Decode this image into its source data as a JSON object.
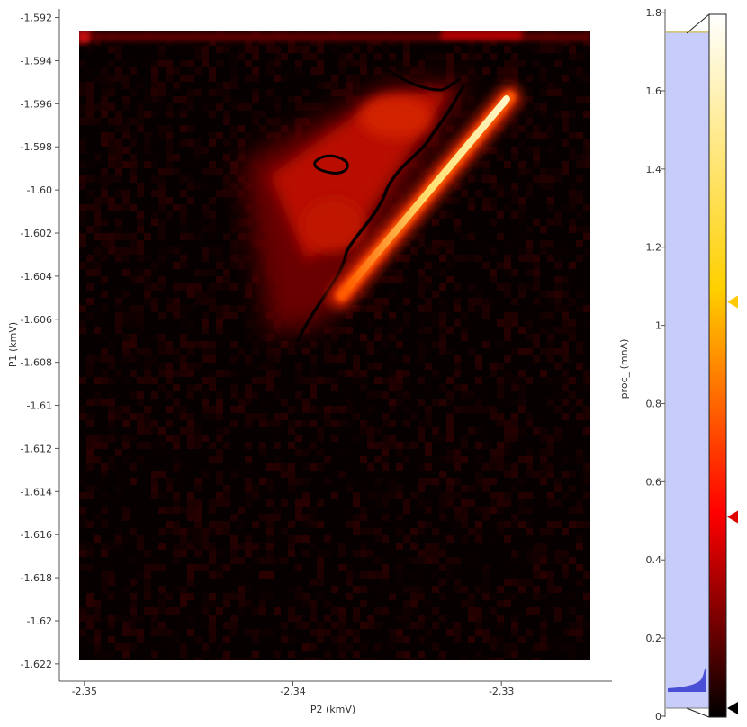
{
  "chart_data": [
    {
      "type": "heatmap",
      "title": "",
      "xlabel": "P2 (kmV)",
      "ylabel": "P1 (kmV)",
      "xlim": [
        -2.3512,
        -2.3247
      ],
      "ylim": [
        -1.6228,
        -1.5916
      ],
      "x_ticks": [
        "-2.35",
        "-2.34",
        "-2.33"
      ],
      "x_tick_values": [
        -2.35,
        -2.34,
        -2.33
      ],
      "y_ticks": [
        "-1.592",
        "-1.594",
        "-1.596",
        "-1.598",
        "-1.60",
        "-1.602",
        "-1.604",
        "-1.606",
        "-1.608",
        "-1.61",
        "-1.612",
        "-1.614",
        "-1.616",
        "-1.618",
        "-1.62",
        "-1.622"
      ],
      "y_tick_values": [
        -1.592,
        -1.594,
        -1.596,
        -1.598,
        -1.6,
        -1.602,
        -1.604,
        -1.606,
        -1.608,
        -1.61,
        -1.612,
        -1.614,
        -1.616,
        -1.618,
        -1.62,
        -1.622
      ],
      "image_extent": {
        "x": [
          -2.3497,
          -2.3244
        ],
        "y": [
          -1.6218,
          -1.5918
        ]
      },
      "colormap": "hot",
      "features": [
        {
          "name": "bright diagonal line",
          "x": [
            -2.3365,
            -2.3289
          ],
          "y": [
            -1.6048,
            -1.5954
          ],
          "peak_value": 1.75
        },
        {
          "name": "triangle region",
          "vertices": [
            [
              -2.3418,
              -1.5985
            ],
            [
              -2.3336,
              -1.5948
            ],
            [
              -2.338,
              -1.6068
            ]
          ],
          "value": 0.55
        }
      ]
    },
    {
      "type": "histogram",
      "ylabel": "proc_ (mnA)",
      "ylim": [
        -0.0024,
        1.8095
      ],
      "y_ticks": [
        "0",
        "0.2",
        "0.4",
        "0.6",
        "0.8",
        "1",
        "1.2",
        "1.4",
        "1.6",
        "1.8"
      ],
      "y_tick_values": [
        0,
        0.2,
        0.4,
        0.6,
        0.8,
        1.0,
        1.2,
        1.4,
        1.6,
        1.8
      ],
      "histogram_range": [
        0,
        1.75
      ],
      "level_range": [
        0,
        1.75
      ],
      "colormap_stops": [
        {
          "value": 0.0,
          "color": "#000000"
        },
        {
          "value": 0.51,
          "color": "#ff0000"
        },
        {
          "value": 1.06,
          "color": "#ffd000"
        },
        {
          "value": 1.75,
          "color": "#ffffff"
        }
      ],
      "gradient_handles": [
        {
          "value": 0.0,
          "color": "#000000"
        },
        {
          "value": 0.51,
          "color": "#e00000"
        },
        {
          "value": 1.06,
          "color": "#ffc800"
        }
      ]
    }
  ]
}
